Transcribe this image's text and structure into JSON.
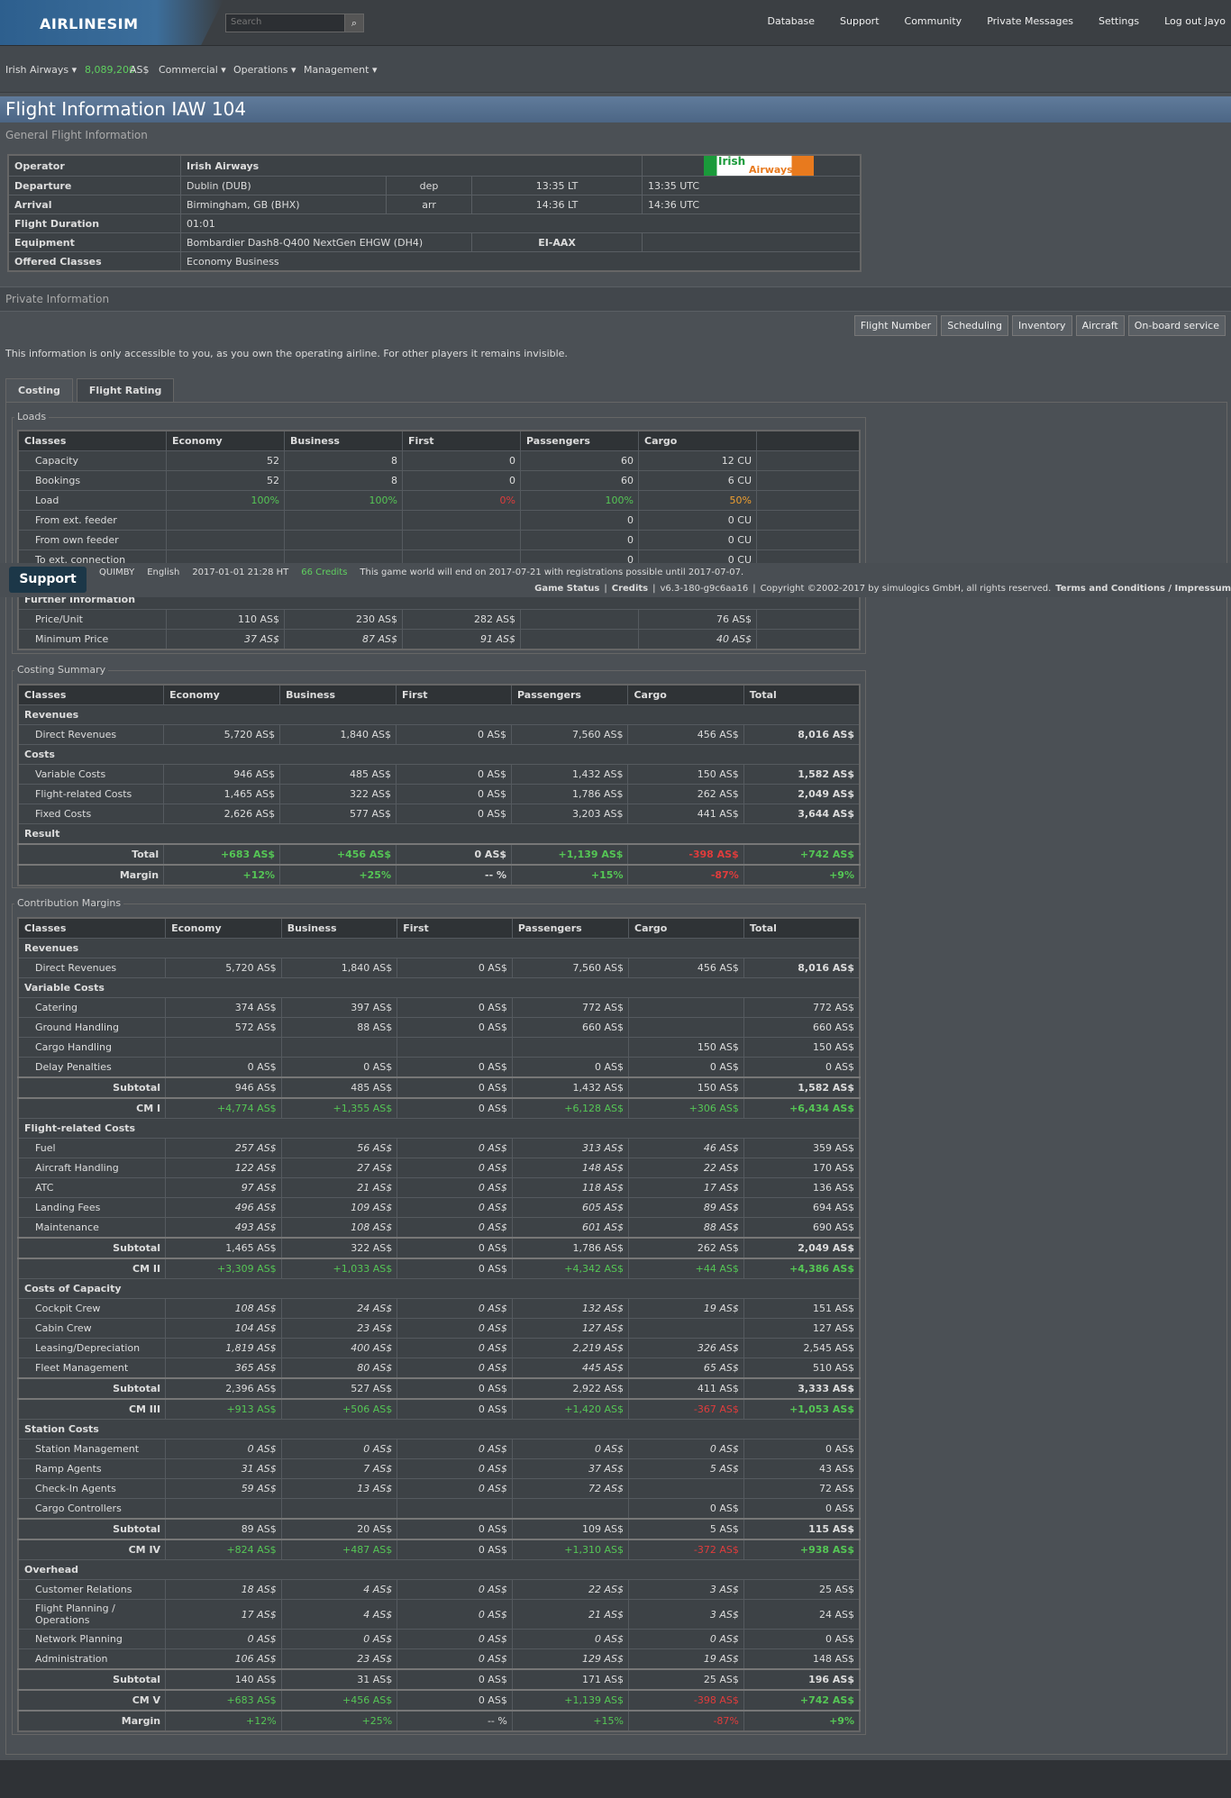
{
  "nav": {
    "logo": "AIRLINESIM",
    "search": "Search",
    "menu": [
      "Database",
      "Support",
      "Community",
      "Private Messages",
      "Settings",
      "Log out Jayo"
    ]
  },
  "subnav": {
    "airline": "Irish Airways",
    "balance": "8,089,200",
    "currency": "AS$",
    "menu": [
      "Commercial",
      "Operations",
      "Management"
    ]
  },
  "title": "Flight Information IAW 104",
  "general": {
    "heading": "General Flight Information",
    "logo": [
      "Irish",
      "Airways"
    ],
    "operator": {
      "label": "Operator",
      "value": "Irish Airways"
    },
    "departure": {
      "label": "Departure",
      "value": "Dublin (DUB)",
      "kind": "dep",
      "local": "13:35 LT",
      "utc": "13:35 UTC"
    },
    "arrival": {
      "label": "Arrival",
      "value": "Birmingham, GB (BHX)",
      "kind": "arr",
      "local": "14:36 LT",
      "utc": "14:36 UTC"
    },
    "duration": {
      "label": "Flight Duration",
      "value": "01:01"
    },
    "equipment": {
      "label": "Equipment",
      "value": "Bombardier Dash8-Q400 NextGen EHGW (DH4)",
      "registration": "EI-AAX"
    },
    "classes": {
      "label": "Offered Classes",
      "value": "Economy Business"
    }
  },
  "private": {
    "heading": "Private Information",
    "buttons": [
      "Flight Number",
      "Scheduling",
      "Inventory",
      "Aircraft",
      "On-board service"
    ],
    "notice": "This information is only accessible to you, as you own the operating airline. For other players it remains invisible.",
    "tabs": [
      "Costing",
      "Flight Rating"
    ]
  },
  "loads": {
    "legend": "Loads",
    "headers": [
      "Classes",
      "Economy",
      "Business",
      "First",
      "Passengers",
      "Cargo"
    ],
    "rows": [
      {
        "label": "Capacity",
        "cells": [
          52,
          8,
          0,
          60,
          "12 CU"
        ]
      },
      {
        "label": "Bookings",
        "cells": [
          52,
          8,
          0,
          60,
          "6 CU"
        ]
      },
      {
        "label": "Load",
        "cells": [
          "100%",
          "100%",
          "0%",
          "100%",
          "50%"
        ],
        "colors": [
          "#55c655",
          "#55c655",
          "#e03c3c",
          "#55c655",
          "#f0a030"
        ]
      },
      {
        "label": "From ext. feeder",
        "cells": [
          null,
          null,
          null,
          0,
          "0 CU"
        ]
      },
      {
        "label": "From own feeder",
        "cells": [
          null,
          null,
          null,
          0,
          "0 CU"
        ]
      },
      {
        "label": "To ext. connection",
        "cells": [
          null,
          null,
          null,
          0,
          "0 CU"
        ]
      },
      {
        "label": "Further Information",
        "style": "section"
      },
      {
        "label": "Price/Unit",
        "cells": [
          "110 AS$",
          "230 AS$",
          "282 AS$",
          null,
          "76 AS$"
        ]
      },
      {
        "label": "Minimum Price",
        "cells": [
          "37 AS$",
          "87 AS$",
          "91 AS$",
          null,
          "40 AS$"
        ],
        "italic": true
      }
    ]
  },
  "summary": {
    "legend": "Costing Summary",
    "headers": [
      "Classes",
      "Economy",
      "Business",
      "First",
      "Passengers",
      "Cargo",
      "Total"
    ],
    "rows": [
      {
        "label": "Revenues",
        "style": "section"
      },
      {
        "label": "Direct Revenues",
        "style": "item-b",
        "cells": [
          "5,720 AS$",
          "1,840 AS$",
          "0 AS$",
          "7,560 AS$",
          "456 AS$",
          "8,016 AS$"
        ]
      },
      {
        "label": "Costs",
        "style": "section"
      },
      {
        "label": "Variable Costs",
        "style": "item-b",
        "cells": [
          "946 AS$",
          "485 AS$",
          "0 AS$",
          "1,432 AS$",
          "150 AS$",
          "1,582 AS$"
        ]
      },
      {
        "label": "Flight-related Costs",
        "style": "item-b",
        "cells": [
          "1,465 AS$",
          "322 AS$",
          "0 AS$",
          "1,786 AS$",
          "262 AS$",
          "2,049 AS$"
        ]
      },
      {
        "label": "Fixed Costs",
        "style": "item-b",
        "cells": [
          "2,626 AS$",
          "577 AS$",
          "0 AS$",
          "3,203 AS$",
          "441 AS$",
          "3,644 AS$"
        ]
      },
      {
        "label": "Result",
        "style": "section"
      },
      {
        "label": "Total",
        "style": "sum-all",
        "tone": "sign",
        "cells": [
          "+683 AS$",
          "+456 AS$",
          "0 AS$",
          "+1,139 AS$",
          "-398 AS$",
          "+742 AS$"
        ]
      },
      {
        "label": "Margin",
        "style": "sum-all",
        "tone": "sign",
        "cells": [
          "+12%",
          "+25%",
          "-- %",
          "+15%",
          "-87%",
          "+9%"
        ]
      }
    ]
  },
  "margins": {
    "legend": "Contribution Margins",
    "headers": [
      "Classes",
      "Economy",
      "Business",
      "First",
      "Passengers",
      "Cargo",
      "Total"
    ],
    "rows": [
      {
        "label": "Revenues",
        "style": "section"
      },
      {
        "label": "Direct Revenues",
        "style": "item-b",
        "cells": [
          "5,720 AS$",
          "1,840 AS$",
          "0 AS$",
          "7,560 AS$",
          "456 AS$",
          "8,016 AS$"
        ]
      },
      {
        "label": "Variable Costs",
        "style": "section"
      },
      {
        "label": "Catering",
        "cells": [
          "374 AS$",
          "397 AS$",
          "0 AS$",
          "772 AS$",
          null,
          "772 AS$"
        ]
      },
      {
        "label": "Ground Handling",
        "cells": [
          "572 AS$",
          "88 AS$",
          "0 AS$",
          "660 AS$",
          null,
          "660 AS$"
        ]
      },
      {
        "label": "Cargo Handling",
        "cells": [
          null,
          null,
          null,
          null,
          "150 AS$",
          "150 AS$"
        ]
      },
      {
        "label": "Delay Penalties",
        "cells": [
          "0 AS$",
          "0 AS$",
          "0 AS$",
          "0 AS$",
          "0 AS$",
          "0 AS$"
        ]
      },
      {
        "label": "Subtotal",
        "style": "sum",
        "cells": [
          "946 AS$",
          "485 AS$",
          "0 AS$",
          "1,432 AS$",
          "150 AS$",
          "1,582 AS$"
        ]
      },
      {
        "label": "CM I",
        "style": "sum",
        "tone": "sign",
        "cells": [
          "+4,774 AS$",
          "+1,355 AS$",
          "0 AS$",
          "+6,128 AS$",
          "+306 AS$",
          "+6,434 AS$"
        ]
      },
      {
        "label": "Flight-related Costs",
        "style": "section"
      },
      {
        "label": "Fuel",
        "italic": true,
        "cells": [
          "257 AS$",
          "56 AS$",
          "0 AS$",
          "313 AS$",
          "46 AS$",
          "359 AS$"
        ]
      },
      {
        "label": "Aircraft Handling",
        "italic": true,
        "cells": [
          "122 AS$",
          "27 AS$",
          "0 AS$",
          "148 AS$",
          "22 AS$",
          "170 AS$"
        ]
      },
      {
        "label": "ATC",
        "italic": true,
        "cells": [
          "97 AS$",
          "21 AS$",
          "0 AS$",
          "118 AS$",
          "17 AS$",
          "136 AS$"
        ]
      },
      {
        "label": "Landing Fees",
        "italic": true,
        "cells": [
          "496 AS$",
          "109 AS$",
          "0 AS$",
          "605 AS$",
          "89 AS$",
          "694 AS$"
        ]
      },
      {
        "label": "Maintenance",
        "italic": true,
        "cells": [
          "493 AS$",
          "108 AS$",
          "0 AS$",
          "601 AS$",
          "88 AS$",
          "690 AS$"
        ]
      },
      {
        "label": "Subtotal",
        "style": "sum",
        "cells": [
          "1,465 AS$",
          "322 AS$",
          "0 AS$",
          "1,786 AS$",
          "262 AS$",
          "2,049 AS$"
        ]
      },
      {
        "label": "CM II",
        "style": "sum",
        "tone": "sign",
        "cells": [
          "+3,309 AS$",
          "+1,033 AS$",
          "0 AS$",
          "+4,342 AS$",
          "+44 AS$",
          "+4,386 AS$"
        ]
      },
      {
        "label": "Costs of Capacity",
        "style": "section"
      },
      {
        "label": "Cockpit Crew",
        "italic": true,
        "cells": [
          "108 AS$",
          "24 AS$",
          "0 AS$",
          "132 AS$",
          "19 AS$",
          "151 AS$"
        ]
      },
      {
        "label": "Cabin Crew",
        "italic": true,
        "cells": [
          "104 AS$",
          "23 AS$",
          "0 AS$",
          "127 AS$",
          null,
          "127 AS$"
        ]
      },
      {
        "label": "Leasing/Depreciation",
        "italic": true,
        "cells": [
          "1,819 AS$",
          "400 AS$",
          "0 AS$",
          "2,219 AS$",
          "326 AS$",
          "2,545 AS$"
        ]
      },
      {
        "label": "Fleet Management",
        "italic": true,
        "cells": [
          "365 AS$",
          "80 AS$",
          "0 AS$",
          "445 AS$",
          "65 AS$",
          "510 AS$"
        ]
      },
      {
        "label": "Subtotal",
        "style": "sum",
        "cells": [
          "2,396 AS$",
          "527 AS$",
          "0 AS$",
          "2,922 AS$",
          "411 AS$",
          "3,333 AS$"
        ]
      },
      {
        "label": "CM III",
        "style": "sum",
        "tone": "sign",
        "cells": [
          "+913 AS$",
          "+506 AS$",
          "0 AS$",
          "+1,420 AS$",
          "-367 AS$",
          "+1,053 AS$"
        ]
      },
      {
        "label": "Station Costs",
        "style": "section"
      },
      {
        "label": "Station Management",
        "italic": true,
        "cells": [
          "0 AS$",
          "0 AS$",
          "0 AS$",
          "0 AS$",
          "0 AS$",
          "0 AS$"
        ]
      },
      {
        "label": "Ramp Agents",
        "italic": true,
        "cells": [
          "31 AS$",
          "7 AS$",
          "0 AS$",
          "37 AS$",
          "5 AS$",
          "43 AS$"
        ]
      },
      {
        "label": "Check-In Agents",
        "italic": true,
        "cells": [
          "59 AS$",
          "13 AS$",
          "0 AS$",
          "72 AS$",
          null,
          "72 AS$"
        ]
      },
      {
        "label": "Cargo Controllers",
        "cells": [
          null,
          null,
          null,
          null,
          "0 AS$",
          "0 AS$"
        ]
      },
      {
        "label": "Subtotal",
        "style": "sum",
        "cells": [
          "89 AS$",
          "20 AS$",
          "0 AS$",
          "109 AS$",
          "5 AS$",
          "115 AS$"
        ]
      },
      {
        "label": "CM IV",
        "style": "sum",
        "tone": "sign",
        "cells": [
          "+824 AS$",
          "+487 AS$",
          "0 AS$",
          "+1,310 AS$",
          "-372 AS$",
          "+938 AS$"
        ]
      },
      {
        "label": "Overhead",
        "style": "section"
      },
      {
        "label": "Customer Relations",
        "italic": true,
        "cells": [
          "18 AS$",
          "4 AS$",
          "0 AS$",
          "22 AS$",
          "3 AS$",
          "25 AS$"
        ]
      },
      {
        "label": "Flight Planning / Operations",
        "italic": true,
        "cells": [
          "17 AS$",
          "4 AS$",
          "0 AS$",
          "21 AS$",
          "3 AS$",
          "24 AS$"
        ]
      },
      {
        "label": "Network Planning",
        "italic": true,
        "cells": [
          "0 AS$",
          "0 AS$",
          "0 AS$",
          "0 AS$",
          "0 AS$",
          "0 AS$"
        ]
      },
      {
        "label": "Administration",
        "italic": true,
        "cells": [
          "106 AS$",
          "23 AS$",
          "0 AS$",
          "129 AS$",
          "19 AS$",
          "148 AS$"
        ]
      },
      {
        "label": "Subtotal",
        "style": "sum",
        "cells": [
          "140 AS$",
          "31 AS$",
          "0 AS$",
          "171 AS$",
          "25 AS$",
          "196 AS$"
        ]
      },
      {
        "label": "CM V",
        "style": "sum",
        "tone": "sign",
        "cells": [
          "+683 AS$",
          "+456 AS$",
          "0 AS$",
          "+1,139 AS$",
          "-398 AS$",
          "+742 AS$"
        ]
      },
      {
        "label": "Margin",
        "style": "sum",
        "tone": "sign",
        "cells": [
          "+12%",
          "+25%",
          "-- %",
          "+15%",
          "-87%",
          "+9%"
        ]
      }
    ]
  },
  "footer": {
    "button": "Support",
    "user": "QUIMBY",
    "language": "English",
    "time": "2017-01-01 21:28 HT",
    "credits": "66 Credits",
    "notice": "This game world will end on 2017-07-21 with registrations possible until 2017-07-07.",
    "links": [
      "Game Status",
      "Credits"
    ],
    "version": "v6.3-180-g9c6aa16",
    "copyright": "Copyright ©2002-2017 by simulogics GmbH, all rights reserved.",
    "legal": "Terms and Conditions / Impressum"
  }
}
